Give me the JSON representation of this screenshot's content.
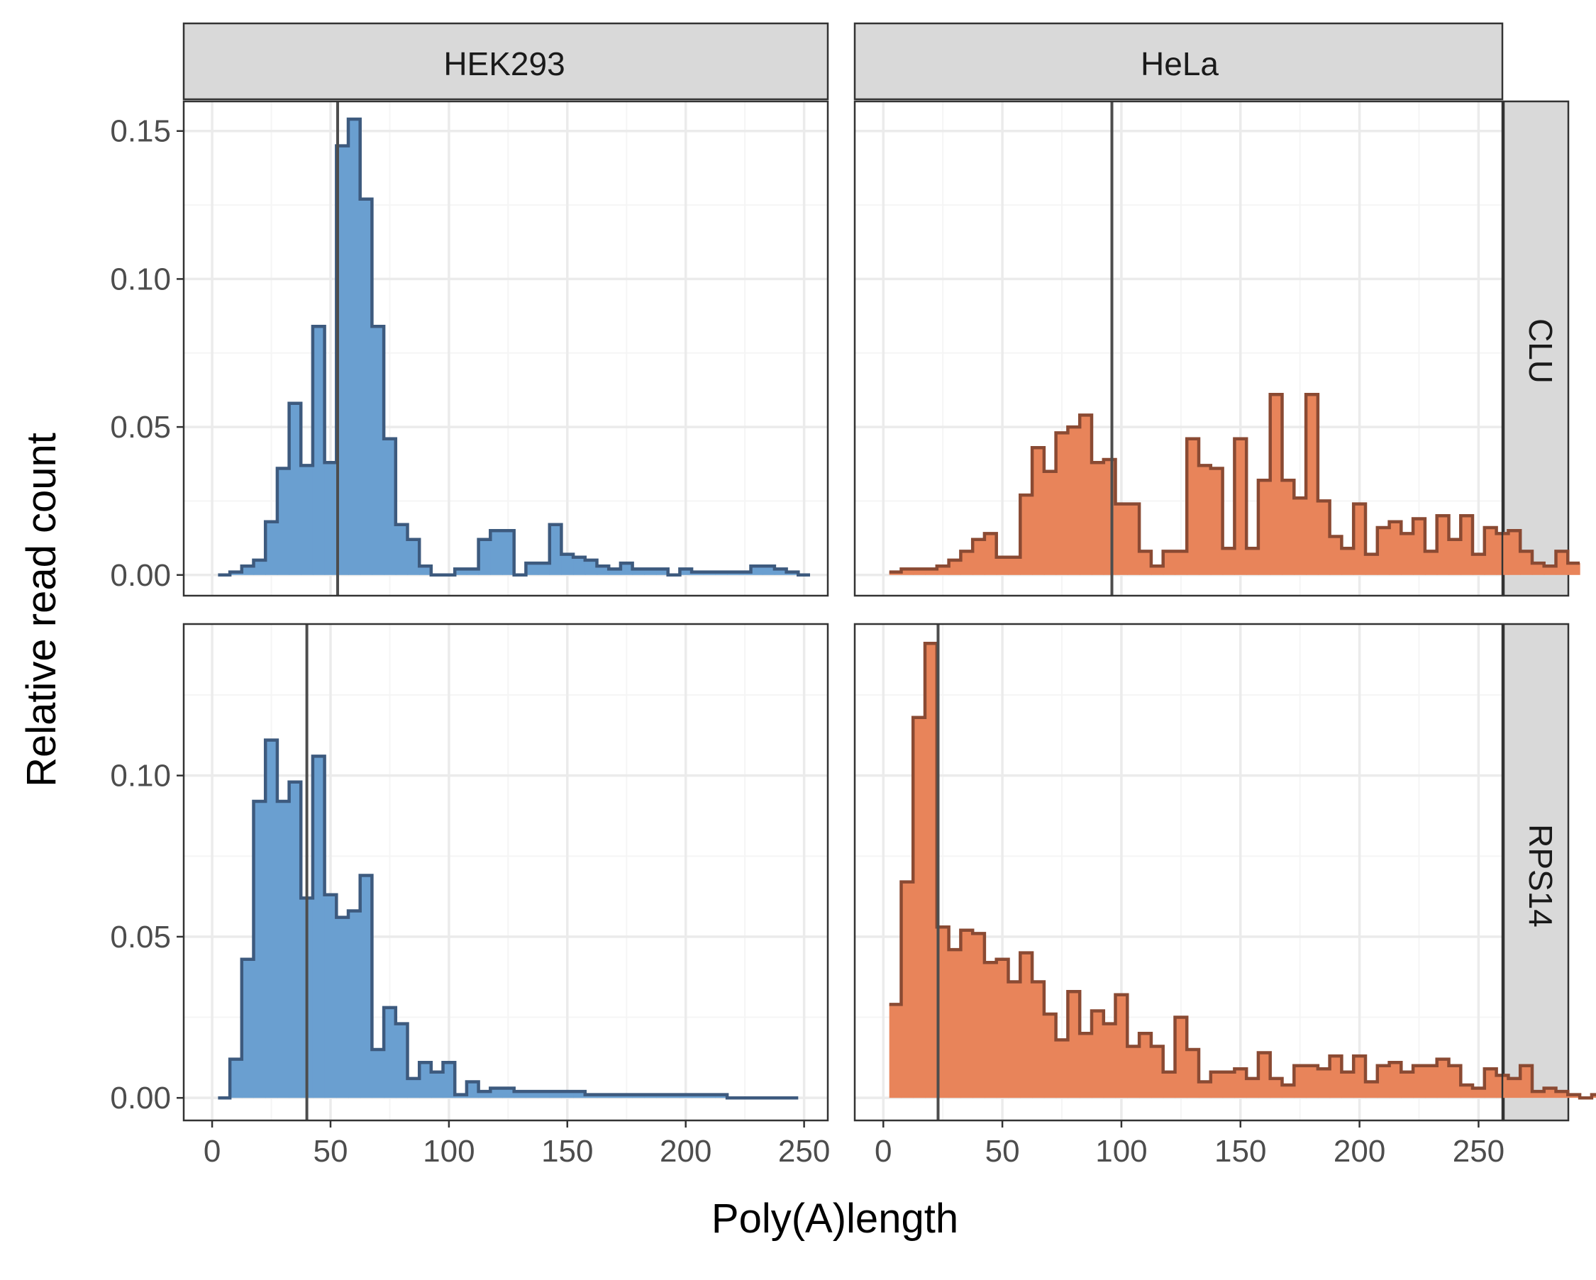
{
  "chart_data": {
    "type": "histogram-facet",
    "xlabel": "Poly(A)length",
    "ylabel": "Relative read count",
    "x_ticks": [
      0,
      50,
      100,
      150,
      200,
      250
    ],
    "xlim": [
      -12,
      260
    ],
    "bin_width": 5,
    "bin_start": 2.5,
    "grid": true,
    "columns": [
      "HEK293",
      "HeLa"
    ],
    "rows": [
      "CLU",
      "RPS14"
    ],
    "row_y": [
      {
        "ylim": [
          -0.007,
          0.16
        ],
        "ticks": [
          0.0,
          0.05,
          0.1,
          0.15
        ],
        "tick_labels": [
          "0.00",
          "0.05",
          "0.10",
          "0.15"
        ]
      },
      {
        "ylim": [
          -0.007,
          0.147
        ],
        "ticks": [
          0.0,
          0.05,
          0.1
        ],
        "tick_labels": [
          "0.00",
          "0.05",
          "0.10"
        ]
      }
    ],
    "colors": {
      "HEK293": {
        "fill": "#6a9fd0",
        "line": "#3d5a7e"
      },
      "HeLa": {
        "fill": "#e8845a",
        "line": "#8a4a33"
      },
      "median_line": "#4d4d4d",
      "strip_fill": "#d9d9d9",
      "grid_major": "#ebebeb",
      "grid_minor": "#f5f5f5"
    },
    "panels": [
      {
        "column": "HEK293",
        "row": "CLU",
        "median": 53,
        "values": [
          0.0,
          0.001,
          0.003,
          0.005,
          0.018,
          0.036,
          0.058,
          0.037,
          0.084,
          0.038,
          0.145,
          0.154,
          0.127,
          0.084,
          0.046,
          0.017,
          0.012,
          0.003,
          0.0,
          0.0,
          0.002,
          0.002,
          0.012,
          0.015,
          0.015,
          0.0,
          0.004,
          0.004,
          0.017,
          0.007,
          0.006,
          0.005,
          0.003,
          0.002,
          0.004,
          0.002,
          0.002,
          0.002,
          0.0,
          0.002,
          0.001,
          0.001,
          0.001,
          0.001,
          0.001,
          0.003,
          0.003,
          0.002,
          0.001,
          0.0
        ]
      },
      {
        "column": "HeLa",
        "row": "CLU",
        "median": 96,
        "values": [
          0.001,
          0.002,
          0.002,
          0.002,
          0.003,
          0.005,
          0.008,
          0.012,
          0.014,
          0.006,
          0.006,
          0.027,
          0.043,
          0.035,
          0.048,
          0.05,
          0.054,
          0.038,
          0.039,
          0.024,
          0.024,
          0.008,
          0.003,
          0.008,
          0.008,
          0.046,
          0.037,
          0.036,
          0.009,
          0.046,
          0.009,
          0.032,
          0.061,
          0.032,
          0.026,
          0.061,
          0.025,
          0.013,
          0.009,
          0.024,
          0.007,
          0.016,
          0.018,
          0.014,
          0.019,
          0.008,
          0.02,
          0.012,
          0.02,
          0.007,
          0.016,
          0.014,
          0.015,
          0.008,
          0.004,
          0.003,
          0.008,
          0.004
        ]
      },
      {
        "column": "HEK293",
        "row": "RPS14",
        "median": 40,
        "values": [
          0.0,
          0.012,
          0.043,
          0.092,
          0.111,
          0.092,
          0.098,
          0.062,
          0.106,
          0.063,
          0.056,
          0.058,
          0.069,
          0.015,
          0.028,
          0.023,
          0.006,
          0.011,
          0.008,
          0.011,
          0.001,
          0.005,
          0.002,
          0.003,
          0.003,
          0.002,
          0.002,
          0.002,
          0.002,
          0.002,
          0.002,
          0.001,
          0.001,
          0.001,
          0.001,
          0.001,
          0.001,
          0.001,
          0.001,
          0.001,
          0.001,
          0.001,
          0.001,
          0.0,
          0.0,
          0.0,
          0.0,
          0.0,
          0.0
        ]
      },
      {
        "column": "HeLa",
        "row": "RPS14",
        "median": 23,
        "values": [
          0.029,
          0.067,
          0.118,
          0.141,
          0.053,
          0.046,
          0.052,
          0.051,
          0.042,
          0.043,
          0.036,
          0.045,
          0.036,
          0.026,
          0.018,
          0.033,
          0.02,
          0.027,
          0.023,
          0.032,
          0.016,
          0.02,
          0.016,
          0.008,
          0.025,
          0.015,
          0.005,
          0.008,
          0.008,
          0.009,
          0.006,
          0.014,
          0.006,
          0.004,
          0.01,
          0.01,
          0.009,
          0.013,
          0.008,
          0.013,
          0.005,
          0.01,
          0.011,
          0.008,
          0.01,
          0.01,
          0.012,
          0.01,
          0.004,
          0.003,
          0.009,
          0.007,
          0.006,
          0.01,
          0.002,
          0.003,
          0.002,
          0.001,
          0.0,
          0.001
        ]
      }
    ]
  }
}
